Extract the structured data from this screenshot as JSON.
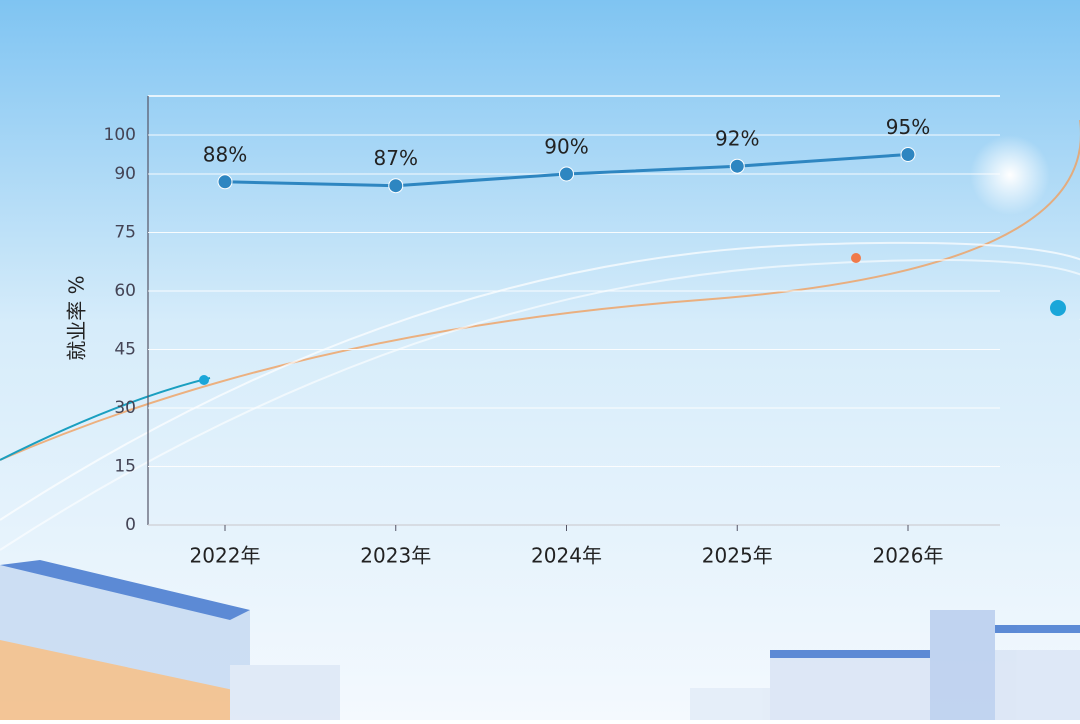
{
  "chart_data": {
    "type": "line",
    "y_label": "就业率 %",
    "categories": [
      "2022年",
      "2023年",
      "2024年",
      "2025年",
      "2026年"
    ],
    "values": [
      88,
      87,
      90,
      92,
      95
    ],
    "value_labels": [
      "88%",
      "87%",
      "90%",
      "92%",
      "95%"
    ],
    "color": "#2e86c1",
    "ylim": [
      0,
      110
    ],
    "yticks": [
      0,
      15,
      30,
      45,
      60,
      75,
      90,
      100
    ],
    "grid": true
  }
}
